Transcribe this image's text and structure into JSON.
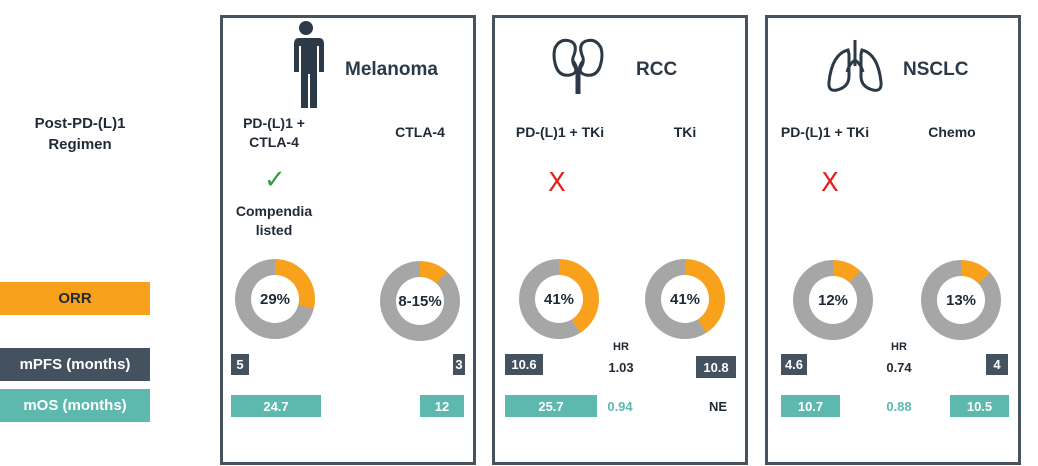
{
  "row_labels": {
    "regimen": "Post-PD-(L)1\nRegimen",
    "orr": "ORR",
    "mpfs": "mPFS (months)",
    "mos": "mOS (months)"
  },
  "colors": {
    "orange": "#f7a11c",
    "gray": "#a6a6a6",
    "navy": "#44515e",
    "teal": "#5db8ae",
    "red": "#e3231b",
    "green": "#2e9e3e"
  },
  "panels": [
    {
      "title": "Melanoma",
      "icon": "human-body-icon",
      "left_regimen": "PD-(L)1 +\nCTLA-4",
      "right_regimen": "CTLA-4",
      "status_icon": "checkmark-icon",
      "status_glyph": "✓",
      "status_text": "Compendia\nlisted",
      "left_orr": {
        "label": "29%",
        "fraction": 0.29
      },
      "right_orr": {
        "label": "8-15%",
        "fraction": 0.12
      },
      "left_pfs": "5",
      "right_pfs": "3",
      "left_os": "24.7",
      "right_os": "12"
    },
    {
      "title": "RCC",
      "icon": "kidneys-icon",
      "left_regimen": "PD-(L)1 + TKi",
      "right_regimen": "TKi",
      "status_icon": "x-mark-icon",
      "status_glyph": "X",
      "left_orr": {
        "label": "41%",
        "fraction": 0.41
      },
      "right_orr": {
        "label": "41%",
        "fraction": 0.41
      },
      "left_pfs": "10.6",
      "right_pfs": "10.8",
      "hr_label": "HR",
      "hr_pfs": "1.03",
      "hr_os": "0.94",
      "left_os": "25.7",
      "right_os": "NE"
    },
    {
      "title": "NSCLC",
      "icon": "lungs-icon",
      "left_regimen": "PD-(L)1 + TKi",
      "right_regimen": "Chemo",
      "status_icon": "x-mark-icon",
      "status_glyph": "X",
      "left_orr": {
        "label": "12%",
        "fraction": 0.12
      },
      "right_orr": {
        "label": "13%",
        "fraction": 0.13
      },
      "left_pfs": "4.6",
      "right_pfs": "4",
      "hr_label": "HR",
      "hr_pfs": "0.74",
      "hr_os": "0.88",
      "left_os": "10.7",
      "right_os": "10.5"
    }
  ]
}
